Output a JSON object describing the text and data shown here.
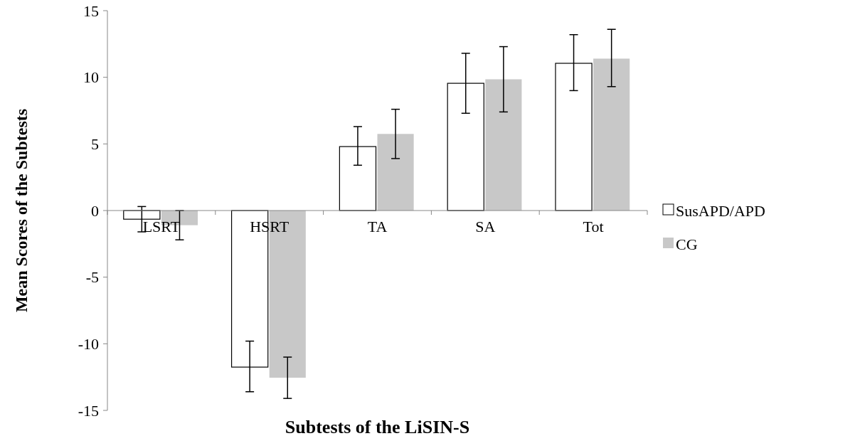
{
  "chart_data": {
    "type": "bar",
    "xlabel": "Subtests of the LiSIN-S",
    "ylabel": "Mean Scores of the Subtests",
    "categories": [
      "LSRT",
      "HSRT",
      "TA",
      "SA",
      "Tot"
    ],
    "series": [
      {
        "name": "SusAPD/APD",
        "color": "#ffffff",
        "values": [
          -0.65,
          -11.75,
          4.8,
          9.55,
          11.05
        ],
        "errors": [
          [
            -1.6,
            0.3
          ],
          [
            -13.6,
            -9.8
          ],
          [
            3.4,
            6.3
          ],
          [
            7.3,
            11.8
          ],
          [
            9.0,
            13.2
          ]
        ]
      },
      {
        "name": "CG",
        "color": "#c8c8c8",
        "values": [
          -1.1,
          -12.55,
          5.75,
          9.85,
          11.4
        ],
        "errors": [
          [
            -2.2,
            0
          ],
          [
            -14.1,
            -11.0
          ],
          [
            3.9,
            7.6
          ],
          [
            7.4,
            12.3
          ],
          [
            9.3,
            13.6
          ]
        ]
      }
    ],
    "ylim": [
      -15,
      15
    ],
    "yticks": [
      -15,
      -10,
      -5,
      0,
      5,
      10,
      15
    ],
    "grid": false,
    "legend": "right"
  }
}
